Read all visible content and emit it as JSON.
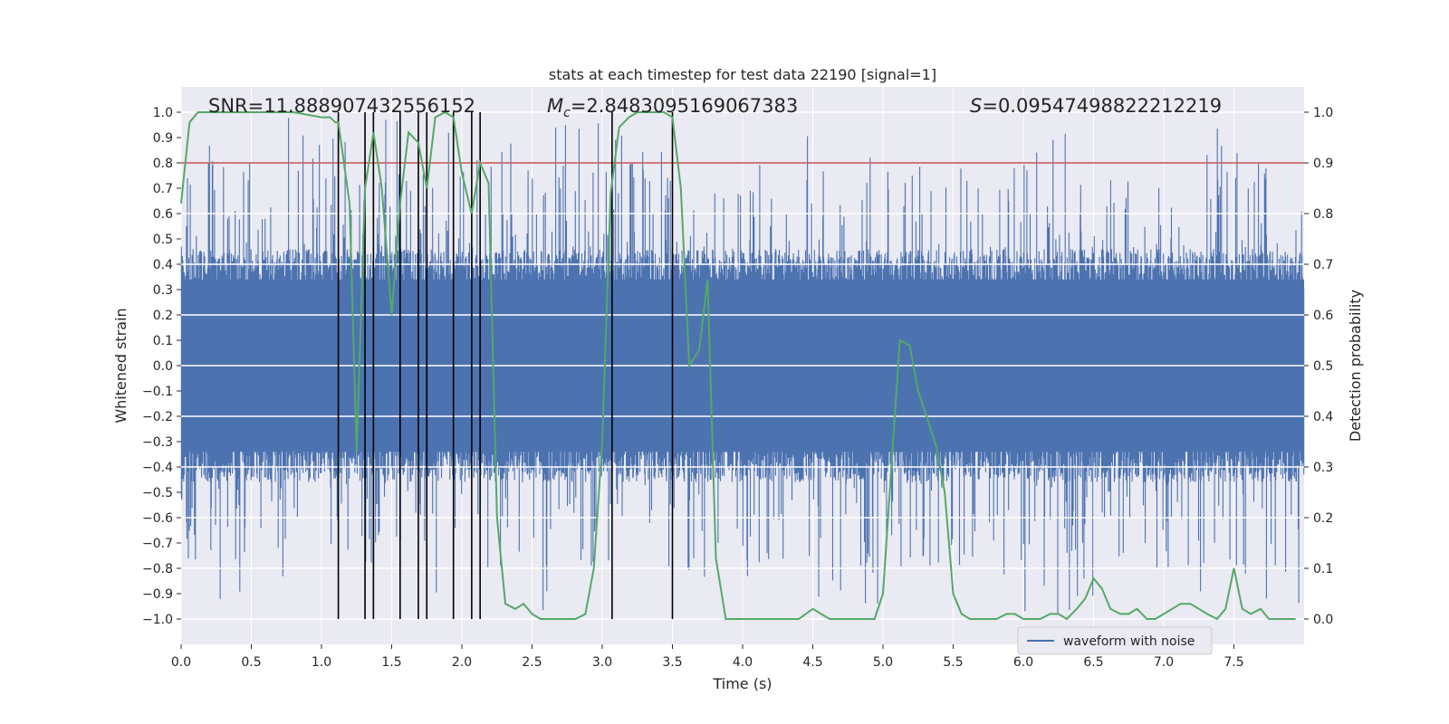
{
  "chart_data": {
    "type": "line",
    "title": "stats at each timestep for test data 22190 [signal=1]",
    "xlabel": "Time (s)",
    "ylabel": "Whitened strain",
    "ylabel_right": "Detection probability",
    "xlim": [
      0,
      8
    ],
    "ylim": [
      -1.1,
      1.1
    ],
    "ylim_right": [
      -0.05,
      1.05
    ],
    "x_ticks": [
      0.0,
      0.5,
      1.0,
      1.5,
      2.0,
      2.5,
      3.0,
      3.5,
      4.0,
      4.5,
      5.0,
      5.5,
      6.0,
      6.5,
      7.0,
      7.5
    ],
    "x_tick_labels": [
      "0.0",
      "0.5",
      "1.0",
      "1.5",
      "2.0",
      "2.5",
      "3.0",
      "3.5",
      "4.0",
      "4.5",
      "5.0",
      "5.5",
      "6.0",
      "6.5",
      "7.0",
      "7.5"
    ],
    "y_ticks": [
      -1.0,
      -0.9,
      -0.8,
      -0.7,
      -0.6,
      -0.5,
      -0.4,
      -0.3,
      -0.2,
      -0.1,
      0.0,
      0.1,
      0.2,
      0.3,
      0.4,
      0.5,
      0.6,
      0.7,
      0.8,
      0.9,
      1.0
    ],
    "y_tick_labels": [
      "−1.0",
      "−0.9",
      "−0.8",
      "−0.7",
      "−0.6",
      "−0.5",
      "−0.4",
      "−0.3",
      "−0.2",
      "−0.1",
      "0.0",
      "0.1",
      "0.2",
      "0.3",
      "0.4",
      "0.5",
      "0.6",
      "0.7",
      "0.8",
      "0.9",
      "1.0"
    ],
    "y_ticks_right": [
      0.0,
      0.1,
      0.2,
      0.3,
      0.4,
      0.5,
      0.6,
      0.7,
      0.8,
      0.9,
      1.0
    ],
    "y_tick_labels_right": [
      "0.0",
      "0.1",
      "0.2",
      "0.3",
      "0.4",
      "0.5",
      "0.6",
      "0.7",
      "0.8",
      "0.9",
      "1.0"
    ],
    "annotations": {
      "snr": "SNR=11.888907432556152",
      "mc_symbol": "M",
      "mc_sub": "c",
      "mc_value": "=2.8483095169067383",
      "s_symbol": "S",
      "s_value": "=0.09547498822212219"
    },
    "legend": {
      "label": "waveform with noise",
      "location": "lower-right"
    },
    "threshold": {
      "value_right": 0.9,
      "color": "#c44e52"
    },
    "vertical_lines_x": [
      1.12,
      1.31,
      1.37,
      1.56,
      1.69,
      1.75,
      1.94,
      2.07,
      2.13,
      3.07,
      3.5
    ],
    "vline_ymin": -1.0,
    "vline_ymax": 1.0,
    "waveform": {
      "name": "waveform with noise",
      "color": "#4c72b0",
      "core_amplitude": 0.4,
      "note": "noise band, dense vertical spikes between approx -0.98 and +0.98"
    },
    "probability_series": {
      "name": "Detection probability",
      "color": "#55a868",
      "x": [
        0.0,
        0.06,
        0.12,
        0.2,
        0.3,
        0.5,
        0.8,
        1.0,
        1.06,
        1.1,
        1.12,
        1.2,
        1.25,
        1.31,
        1.37,
        1.43,
        1.5,
        1.56,
        1.62,
        1.69,
        1.75,
        1.81,
        1.88,
        1.94,
        2.0,
        2.07,
        2.13,
        2.19,
        2.25,
        2.31,
        2.38,
        2.44,
        2.5,
        2.56,
        2.62,
        2.69,
        2.75,
        2.81,
        2.88,
        2.94,
        3.0,
        3.06,
        3.12,
        3.19,
        3.25,
        3.31,
        3.38,
        3.44,
        3.5,
        3.56,
        3.62,
        3.69,
        3.75,
        3.81,
        3.88,
        3.94,
        4.0,
        4.1,
        4.2,
        4.3,
        4.4,
        4.5,
        4.56,
        4.62,
        4.69,
        4.75,
        4.81,
        4.88,
        4.94,
        5.0,
        5.06,
        5.12,
        5.19,
        5.25,
        5.31,
        5.38,
        5.44,
        5.5,
        5.56,
        5.62,
        5.69,
        5.75,
        5.81,
        5.88,
        5.94,
        6.0,
        6.06,
        6.12,
        6.19,
        6.25,
        6.31,
        6.38,
        6.44,
        6.5,
        6.56,
        6.62,
        6.69,
        6.75,
        6.81,
        6.88,
        6.94,
        7.0,
        7.06,
        7.12,
        7.19,
        7.25,
        7.31,
        7.38,
        7.44,
        7.5,
        7.56,
        7.62,
        7.69,
        7.75,
        7.81,
        7.88,
        7.94
      ],
      "y": [
        0.82,
        0.98,
        1.0,
        1.0,
        1.0,
        1.0,
        1.0,
        0.99,
        0.99,
        0.98,
        0.98,
        0.82,
        0.33,
        0.85,
        0.96,
        0.85,
        0.6,
        0.82,
        0.96,
        0.94,
        0.85,
        0.99,
        1.0,
        0.99,
        0.88,
        0.8,
        0.9,
        0.86,
        0.2,
        0.03,
        0.02,
        0.03,
        0.01,
        0.0,
        0.0,
        0.0,
        0.0,
        0.0,
        0.01,
        0.1,
        0.35,
        0.84,
        0.97,
        0.99,
        1.0,
        1.0,
        1.0,
        1.0,
        0.99,
        0.85,
        0.5,
        0.53,
        0.67,
        0.12,
        0.0,
        0.0,
        0.0,
        0.0,
        0.0,
        0.0,
        0.0,
        0.02,
        0.01,
        0.0,
        0.0,
        0.0,
        0.0,
        0.0,
        0.0,
        0.05,
        0.3,
        0.55,
        0.54,
        0.45,
        0.4,
        0.34,
        0.25,
        0.05,
        0.01,
        0.0,
        0.0,
        0.0,
        0.0,
        0.01,
        0.01,
        0.0,
        0.0,
        0.0,
        0.01,
        0.01,
        0.0,
        0.02,
        0.04,
        0.08,
        0.06,
        0.02,
        0.01,
        0.01,
        0.02,
        0.0,
        0.0,
        0.01,
        0.02,
        0.03,
        0.03,
        0.02,
        0.01,
        0.0,
        0.02,
        0.1,
        0.02,
        0.01,
        0.02,
        0.0,
        0.0,
        0.0,
        0.0
      ]
    }
  }
}
